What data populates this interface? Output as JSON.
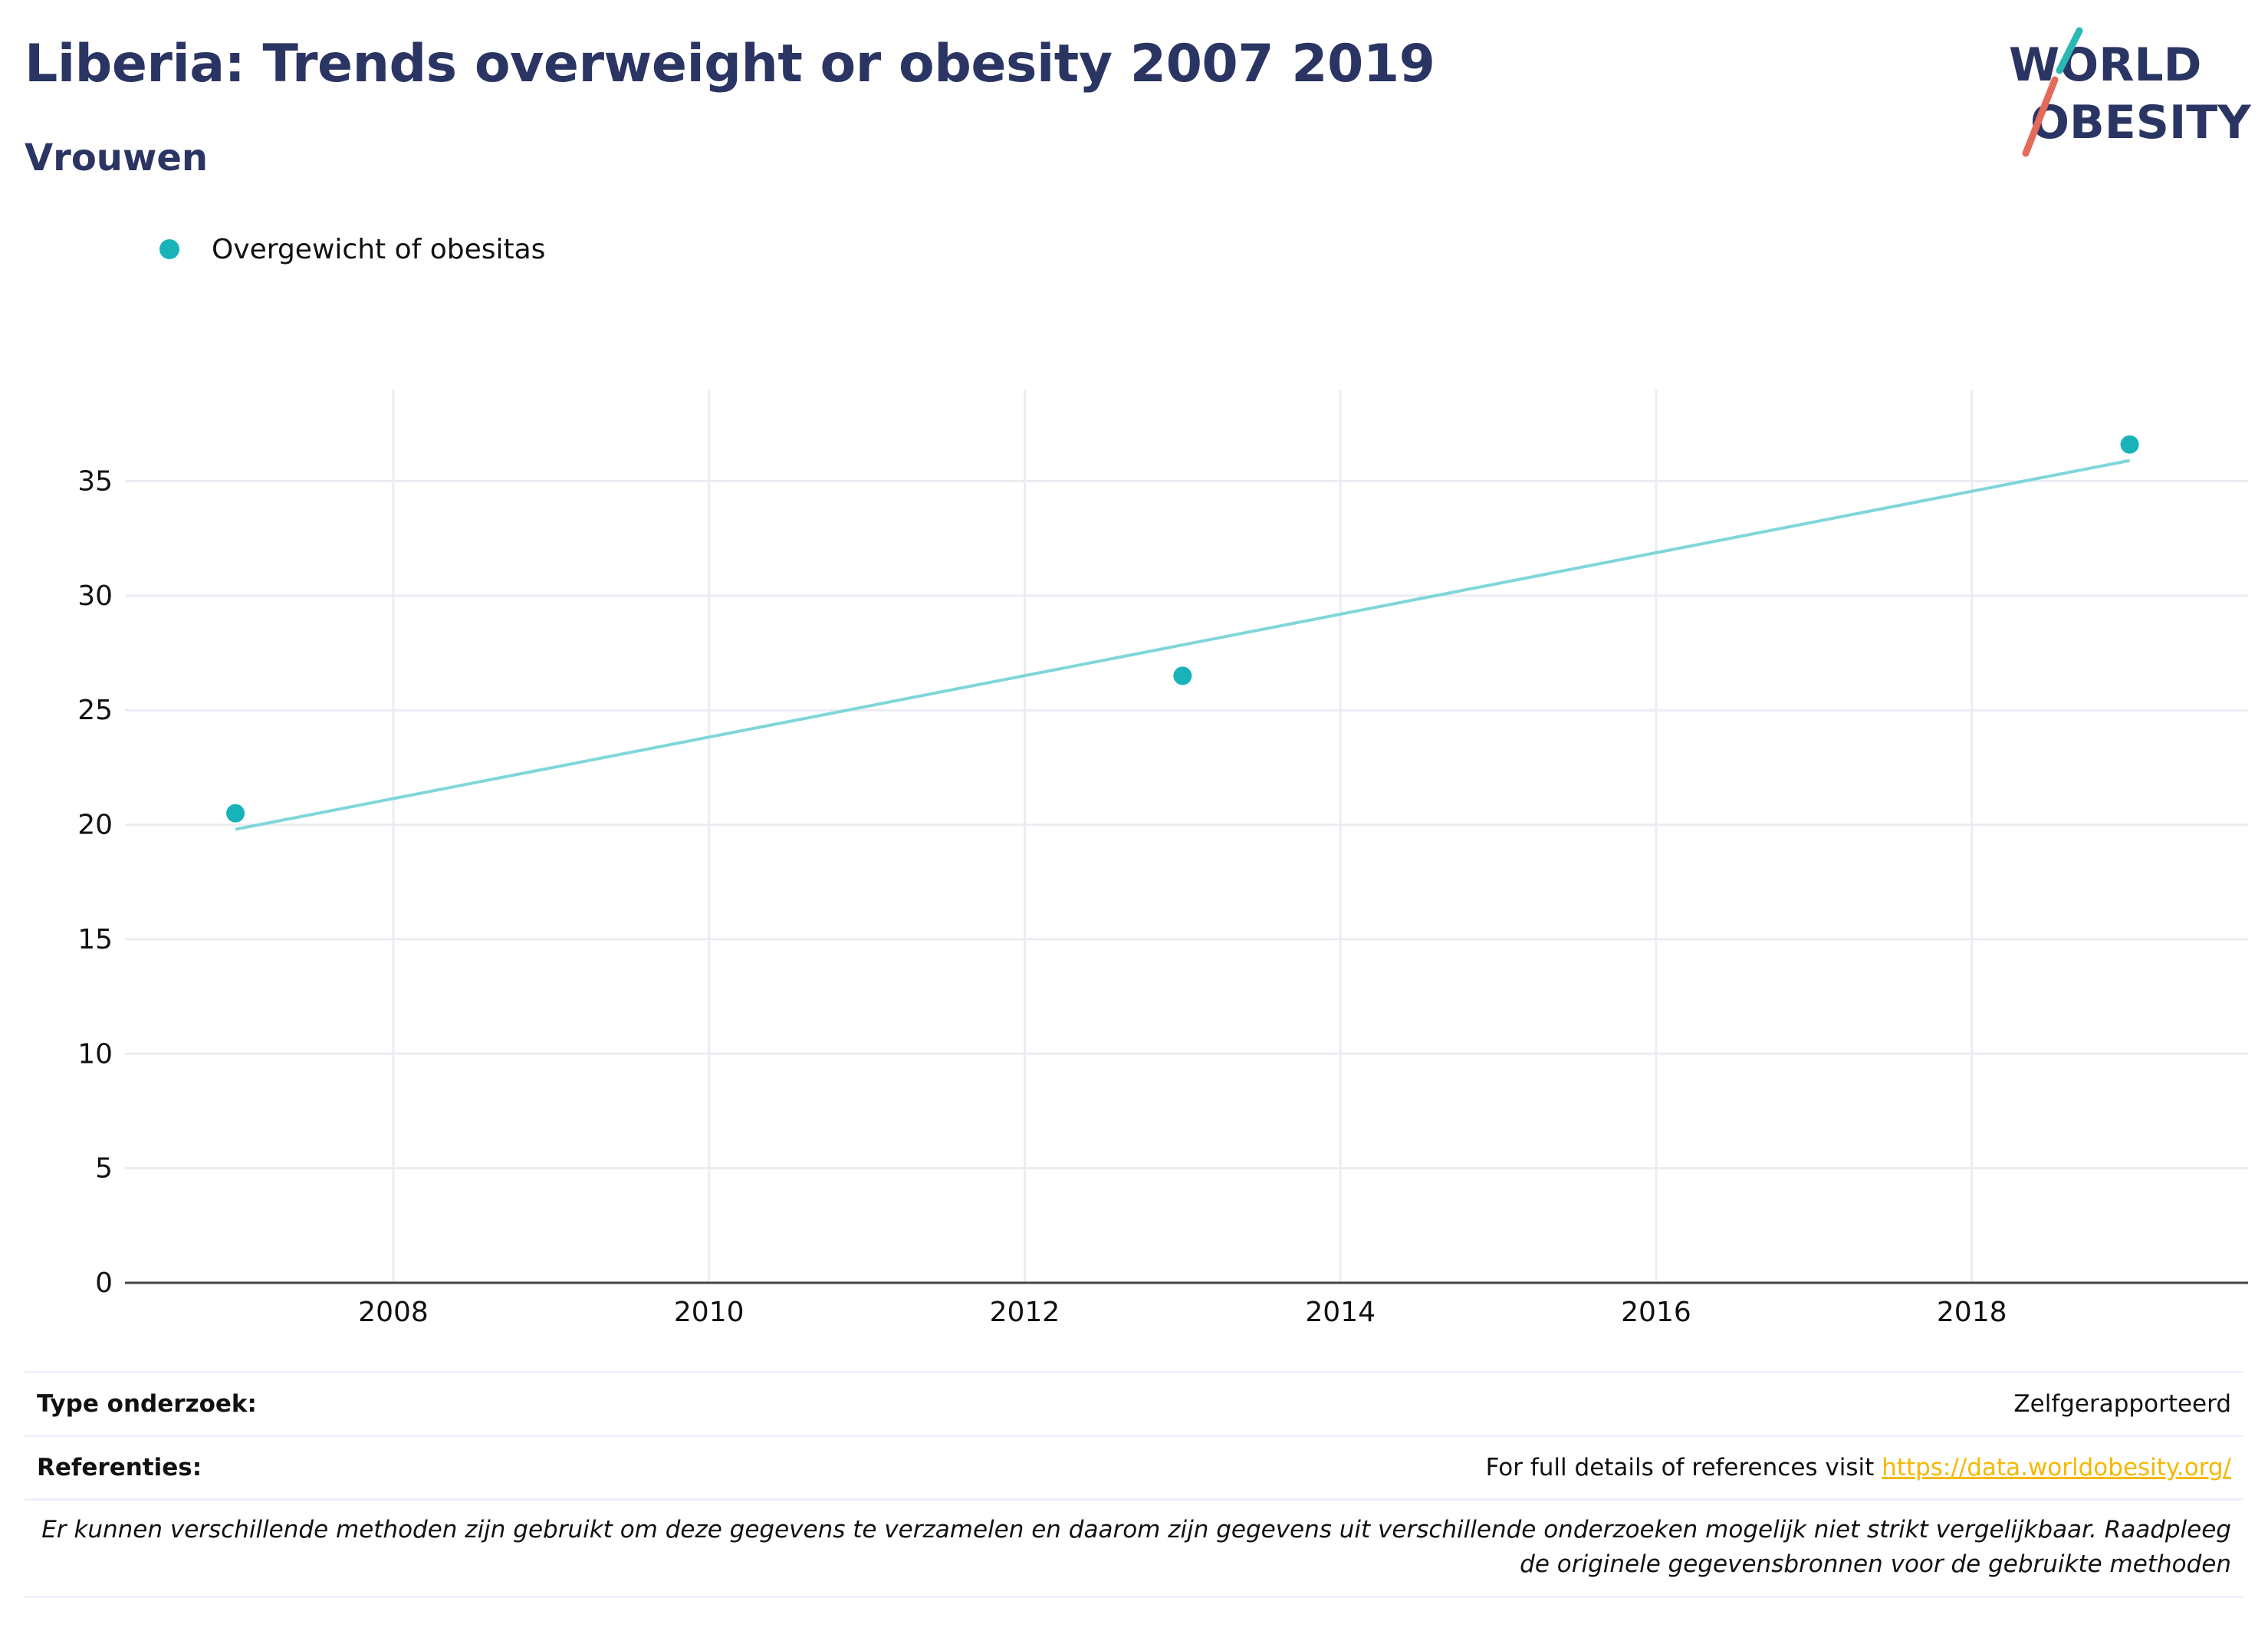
{
  "header": {
    "title": "Liberia: Trends overweight or obesity 2007 2019",
    "subtitle": "Vrouwen"
  },
  "logo": {
    "line1": "WORLD",
    "line2": "OBESITY"
  },
  "legend": {
    "label": "Overgewicht of obesitas"
  },
  "colors": {
    "marker": "#17b3b9",
    "trendline": "#7fd6d9",
    "title": "#2b3563",
    "grid": "#ebedf3",
    "link": "#f5b800"
  },
  "chart_data": {
    "type": "scatter",
    "title": "Liberia: Trends overweight or obesity 2007 2019",
    "subtitle": "Vrouwen",
    "xlabel": "",
    "ylabel": "",
    "xlim": [
      2006.3,
      2019.75
    ],
    "ylim": [
      0,
      39
    ],
    "x_ticks": [
      2008,
      2010,
      2012,
      2014,
      2016,
      2018
    ],
    "y_ticks": [
      0,
      5,
      10,
      15,
      20,
      25,
      30,
      35
    ],
    "grid": true,
    "legend_position": "top-left",
    "series": [
      {
        "name": "Overgewicht of obesitas",
        "x": [
          2007,
          2013,
          2019
        ],
        "y": [
          20.5,
          26.5,
          36.6
        ]
      }
    ],
    "trendline": {
      "x": [
        2007,
        2019
      ],
      "y": [
        19.8,
        35.9
      ]
    }
  },
  "meta": {
    "type_key": "Type onderzoek:",
    "type_value": "Zelfgerapporteerd",
    "ref_key": "Referenties:",
    "ref_text": "For full details of references visit ",
    "ref_link": "https://data.worldobesity.org/",
    "note_line1": "Er kunnen verschillende methoden zijn gebruikt om deze gegevens te verzamelen en daarom zijn gegevens uit verschillende onderzoeken mogelijk niet strikt vergelijkbaar. Raadpleeg",
    "note_line2": "de originele gegevensbronnen voor de gebruikte methoden"
  }
}
